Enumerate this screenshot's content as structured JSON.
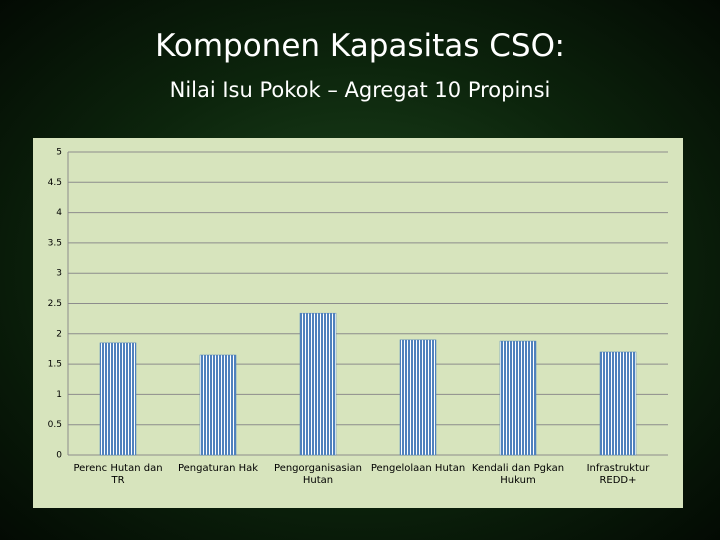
{
  "title": "Komponen Kapasitas CSO:",
  "chart_data": {
    "type": "bar",
    "title": "Nilai Isu Pokok – Agregat 10 Propinsi",
    "categories": [
      "Perenc Hutan dan TR",
      "Pengaturan Hak",
      "Pengorganisasian Hutan",
      "Pengelolaan Hutan",
      "Kendali dan Pgkan Hukum",
      "Infrastruktur REDD+"
    ],
    "values": [
      1.85,
      1.65,
      2.34,
      1.9,
      1.88,
      1.7
    ],
    "color": "#4f81bd",
    "ylim": [
      0,
      5
    ],
    "yticks": [
      0,
      0.5,
      1,
      1.5,
      2,
      2.5,
      3,
      3.5,
      4,
      4.5,
      5
    ],
    "grid": true
  }
}
